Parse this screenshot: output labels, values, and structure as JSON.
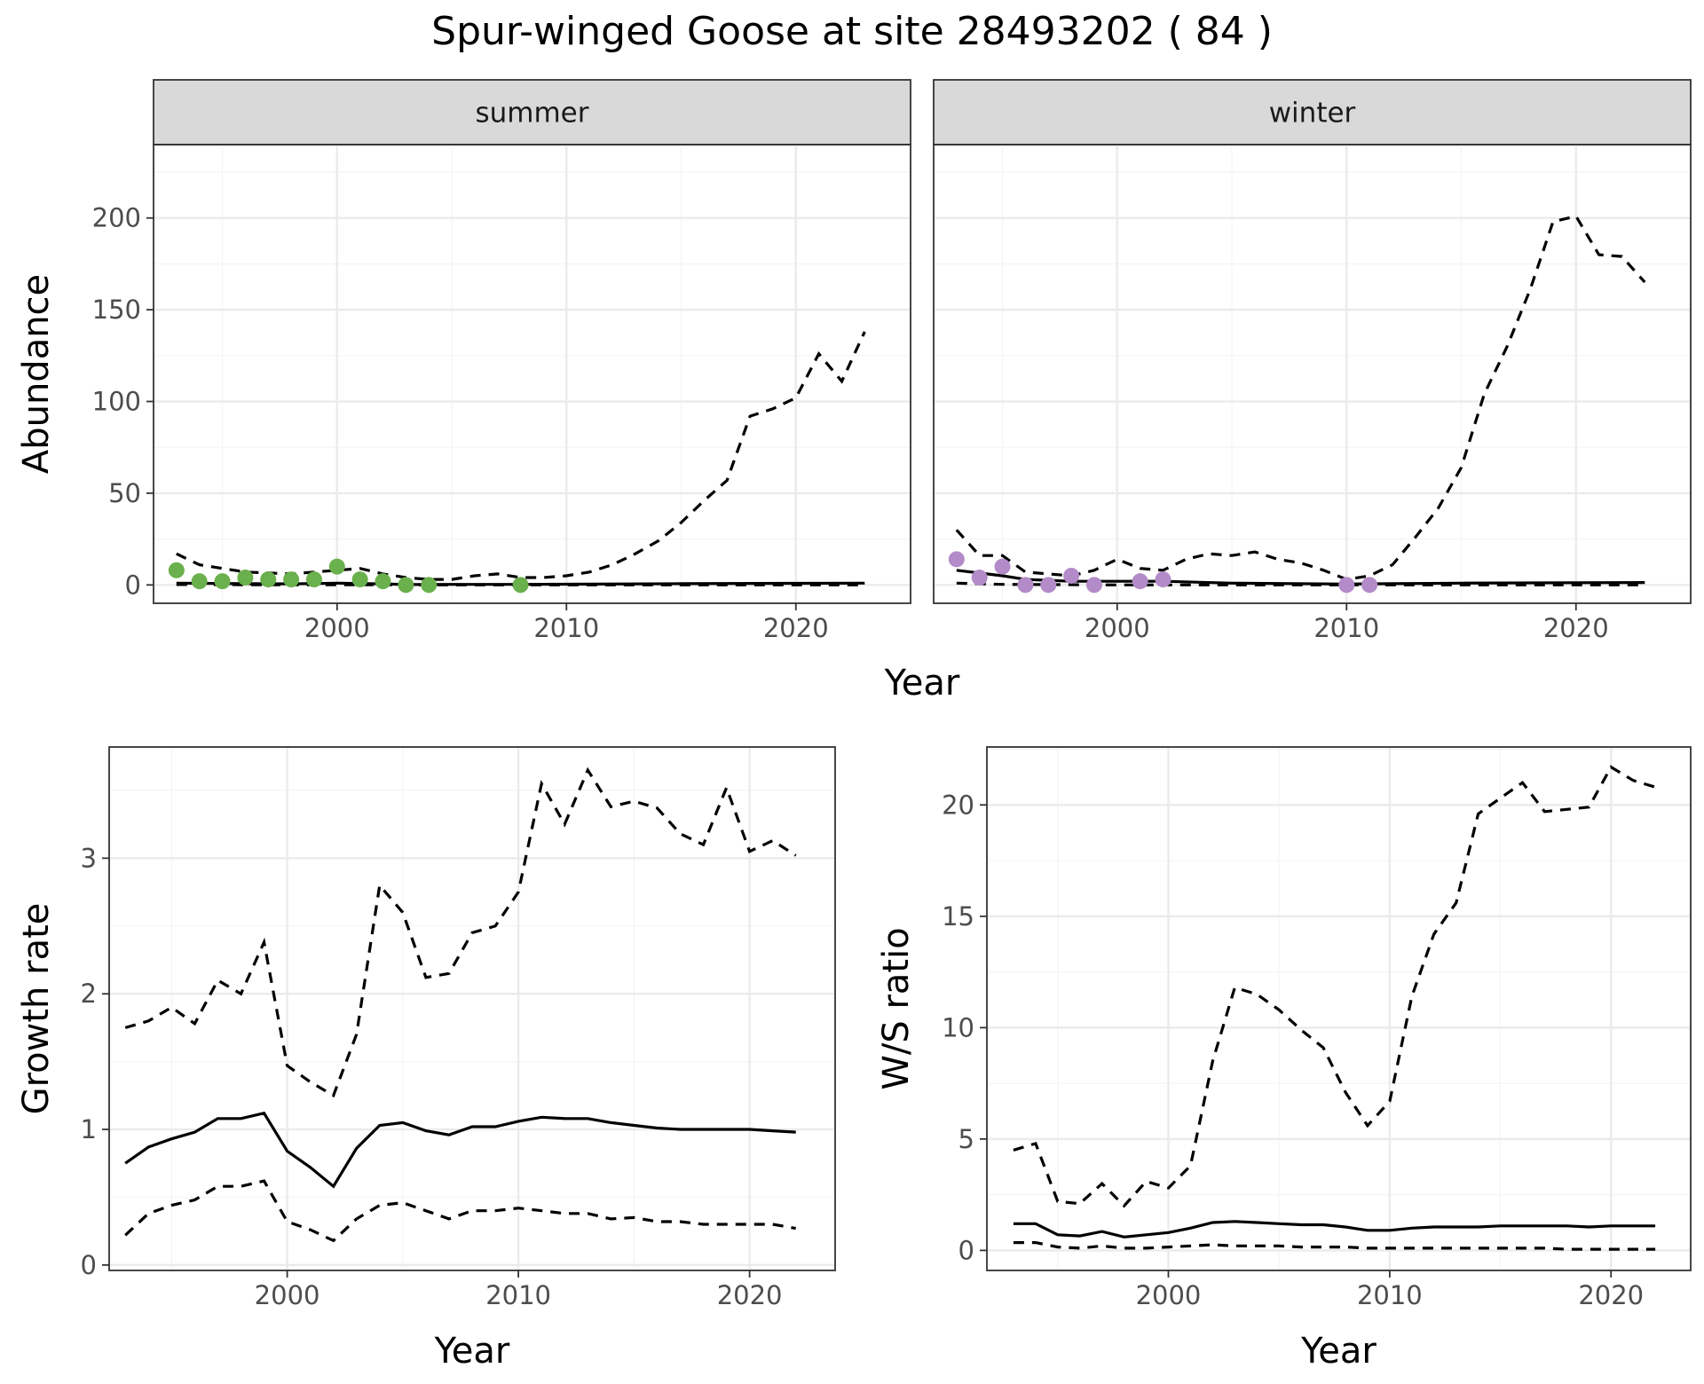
{
  "title": "Spur-winged Goose at site 28493202 ( 84 )",
  "colors": {
    "summer_points": "#6ab04c",
    "winter_points": "#b38bc8",
    "strip_fill": "#d9d9d9"
  },
  "chart_data": [
    {
      "id": "abundance",
      "type": "line",
      "xlabel": "Year",
      "ylabel": "Abundance",
      "xlim": [
        1992,
        2025
      ],
      "ylim": [
        -10,
        240
      ],
      "xticks": [
        2000,
        2010,
        2020
      ],
      "yticks": [
        0,
        50,
        100,
        150,
        200
      ],
      "facets": [
        {
          "strip": "summer",
          "mean": {
            "x": [
              1993,
              1995,
              1998,
              2000,
              2002,
              2003,
              2005,
              2008,
              2010,
              2015,
              2020,
              2023
            ],
            "y": [
              1,
              0.8,
              0.6,
              1,
              0.6,
              0.2,
              0.3,
              0.3,
              0.4,
              0.7,
              0.9,
              1
            ]
          },
          "upper": {
            "x": [
              1993,
              1994,
              1996,
              1998,
              1999,
              2000,
              2001,
              2002,
              2003,
              2004,
              2005,
              2006,
              2007,
              2008,
              2009,
              2010,
              2011,
              2012,
              2013,
              2014,
              2015,
              2016,
              2017,
              2018,
              2019,
              2020,
              2021,
              2022,
              2023
            ],
            "y": [
              17,
              11,
              7,
              6,
              7,
              8,
              9,
              6,
              4,
              3,
              3,
              5,
              6,
              4,
              4,
              5,
              7,
              11,
              17,
              24,
              34,
              46,
              57,
              92,
              96,
              102,
              126,
              111,
              138
            ]
          },
          "lower": {
            "x": [
              1993,
              1996,
              2000,
              2005,
              2010,
              2015,
              2020,
              2023
            ],
            "y": [
              0.2,
              0.1,
              0.1,
              0,
              0,
              0,
              0,
              0
            ]
          },
          "points": {
            "x": [
              1993,
              1994,
              1995,
              1996,
              1997,
              1998,
              1999,
              2000,
              2001,
              2002,
              2003,
              2004,
              2008
            ],
            "y": [
              8,
              2,
              2,
              4,
              3,
              3,
              3,
              10,
              3,
              2,
              0,
              0,
              0
            ]
          }
        },
        {
          "strip": "winter",
          "mean": {
            "x": [
              1993,
              1995,
              1996,
              1998,
              2000,
              2002,
              2005,
              2010,
              2012,
              2015,
              2020,
              2023
            ],
            "y": [
              8,
              5,
              3,
              2,
              2,
              2,
              1,
              0.5,
              0.7,
              1,
              1.2,
              1.3
            ]
          },
          "upper": {
            "x": [
              1993,
              1994,
              1995,
              1996,
              1997,
              1998,
              1999,
              2000,
              2001,
              2002,
              2003,
              2004,
              2005,
              2006,
              2007,
              2008,
              2009,
              2010,
              2011,
              2012,
              2013,
              2014,
              2015,
              2016,
              2017,
              2018,
              2019,
              2020,
              2021,
              2022,
              2023
            ],
            "y": [
              30,
              16,
              16,
              7,
              6,
              5,
              8,
              14,
              9,
              8,
              14,
              17,
              16,
              18,
              14,
              12,
              8,
              3,
              5,
              11,
              26,
              42,
              64,
              104,
              130,
              161,
              198,
              201,
              180,
              179,
              165
            ]
          },
          "lower": {
            "x": [
              1993,
              1995,
              2000,
              2005,
              2010,
              2015,
              2020,
              2023
            ],
            "y": [
              1,
              0.3,
              0,
              0,
              0,
              0,
              0,
              0
            ]
          },
          "points": {
            "x": [
              1993,
              1994,
              1995,
              1996,
              1997,
              1998,
              1999,
              2001,
              2002,
              2010,
              2011
            ],
            "y": [
              14,
              4,
              10,
              0,
              0,
              5,
              0,
              2,
              3,
              0,
              0
            ]
          }
        }
      ]
    },
    {
      "id": "growth",
      "type": "line",
      "xlabel": "Year",
      "ylabel": "Growth rate",
      "xlim": [
        1992.3,
        2023.7
      ],
      "ylim": [
        -0.04,
        3.82
      ],
      "xticks": [
        2000,
        2010,
        2020
      ],
      "yticks": [
        0,
        1,
        2,
        3
      ],
      "series": [
        {
          "name": "mean",
          "x": [
            1993,
            1994,
            1995,
            1996,
            1997,
            1998,
            1999,
            2000,
            2001,
            2002,
            2003,
            2004,
            2005,
            2006,
            2007,
            2008,
            2009,
            2010,
            2011,
            2012,
            2013,
            2014,
            2015,
            2016,
            2017,
            2018,
            2019,
            2020,
            2021,
            2022
          ],
          "y": [
            0.75,
            0.87,
            0.93,
            0.98,
            1.08,
            1.08,
            1.12,
            0.84,
            0.72,
            0.58,
            0.86,
            1.03,
            1.05,
            0.99,
            0.96,
            1.02,
            1.02,
            1.06,
            1.09,
            1.08,
            1.08,
            1.05,
            1.03,
            1.01,
            1.0,
            1.0,
            1.0,
            1.0,
            0.99,
            0.98
          ]
        },
        {
          "name": "upper",
          "x": [
            1993,
            1994,
            1995,
            1996,
            1997,
            1998,
            1999,
            2000,
            2001,
            2002,
            2003,
            2004,
            2005,
            2006,
            2007,
            2008,
            2009,
            2010,
            2011,
            2012,
            2013,
            2014,
            2015,
            2016,
            2017,
            2018,
            2019,
            2020,
            2021,
            2022
          ],
          "y": [
            1.75,
            1.8,
            1.9,
            1.78,
            2.1,
            2.0,
            2.38,
            1.47,
            1.35,
            1.25,
            1.7,
            2.8,
            2.6,
            2.12,
            2.15,
            2.45,
            2.5,
            2.75,
            3.55,
            3.25,
            3.65,
            3.38,
            3.42,
            3.37,
            3.18,
            3.1,
            3.52,
            3.05,
            3.13,
            3.02
          ]
        },
        {
          "name": "lower",
          "x": [
            1993,
            1994,
            1995,
            1996,
            1997,
            1998,
            1999,
            2000,
            2001,
            2002,
            2003,
            2004,
            2005,
            2006,
            2007,
            2008,
            2009,
            2010,
            2011,
            2012,
            2013,
            2014,
            2015,
            2016,
            2017,
            2018,
            2019,
            2020,
            2021,
            2022
          ],
          "y": [
            0.22,
            0.38,
            0.44,
            0.48,
            0.58,
            0.58,
            0.62,
            0.32,
            0.26,
            0.18,
            0.34,
            0.44,
            0.46,
            0.4,
            0.34,
            0.4,
            0.4,
            0.42,
            0.4,
            0.38,
            0.38,
            0.34,
            0.35,
            0.32,
            0.32,
            0.3,
            0.3,
            0.3,
            0.3,
            0.27
          ]
        }
      ]
    },
    {
      "id": "ws_ratio",
      "type": "line",
      "xlabel": "Year",
      "ylabel": "W/S ratio",
      "xlim": [
        1991.8,
        2023.6
      ],
      "ylim": [
        -0.9,
        22.6
      ],
      "xticks": [
        2000,
        2010,
        2020
      ],
      "yticks": [
        0,
        5,
        10,
        15,
        20
      ],
      "series": [
        {
          "name": "mean",
          "x": [
            1993,
            1994,
            1995,
            1996,
            1997,
            1998,
            1999,
            2000,
            2001,
            2002,
            2003,
            2004,
            2005,
            2006,
            2007,
            2008,
            2009,
            2010,
            2011,
            2012,
            2013,
            2014,
            2015,
            2016,
            2017,
            2018,
            2019,
            2020,
            2021,
            2022
          ],
          "y": [
            1.2,
            1.2,
            0.7,
            0.65,
            0.85,
            0.6,
            0.7,
            0.8,
            1.0,
            1.25,
            1.3,
            1.25,
            1.2,
            1.15,
            1.15,
            1.05,
            0.9,
            0.9,
            1.0,
            1.05,
            1.05,
            1.05,
            1.1,
            1.1,
            1.1,
            1.1,
            1.05,
            1.1,
            1.1,
            1.1
          ]
        },
        {
          "name": "upper",
          "x": [
            1993,
            1994,
            1995,
            1996,
            1997,
            1998,
            1999,
            2000,
            2001,
            2002,
            2003,
            2004,
            2005,
            2006,
            2007,
            2008,
            2009,
            2010,
            2011,
            2012,
            2013,
            2014,
            2015,
            2016,
            2017,
            2018,
            2019,
            2020,
            2021,
            2022
          ],
          "y": [
            4.5,
            4.8,
            2.2,
            2.1,
            3.0,
            2.0,
            3.1,
            2.8,
            3.8,
            8.5,
            11.8,
            11.5,
            10.8,
            9.9,
            9.1,
            7.1,
            5.6,
            6.7,
            11.4,
            14.2,
            15.6,
            19.6,
            20.3,
            21.0,
            19.7,
            19.8,
            19.9,
            21.7,
            21.1,
            20.8
          ]
        },
        {
          "name": "lower",
          "x": [
            1993,
            1994,
            1995,
            1996,
            1997,
            1998,
            1999,
            2000,
            2001,
            2002,
            2003,
            2004,
            2005,
            2006,
            2007,
            2008,
            2009,
            2010,
            2011,
            2012,
            2013,
            2014,
            2015,
            2016,
            2017,
            2018,
            2019,
            2020,
            2021,
            2022
          ],
          "y": [
            0.35,
            0.35,
            0.15,
            0.1,
            0.2,
            0.1,
            0.1,
            0.15,
            0.2,
            0.25,
            0.2,
            0.2,
            0.2,
            0.15,
            0.15,
            0.15,
            0.1,
            0.1,
            0.1,
            0.1,
            0.1,
            0.1,
            0.1,
            0.1,
            0.1,
            0.05,
            0.05,
            0.05,
            0.05,
            0.05
          ]
        }
      ]
    }
  ]
}
